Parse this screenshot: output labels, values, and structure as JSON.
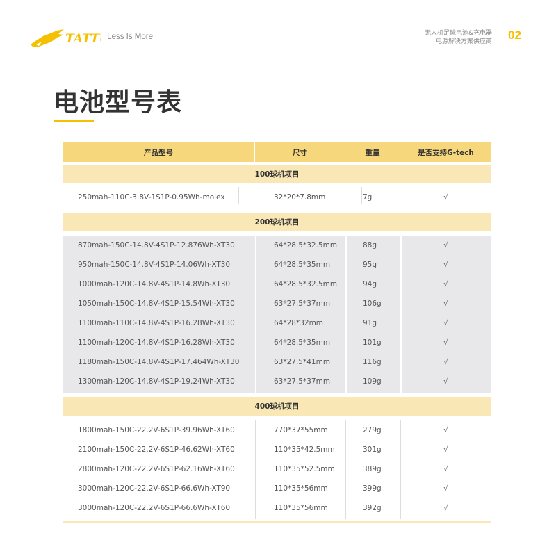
{
  "header": {
    "logo_text": "TATTU",
    "slogan": "| Less Is More",
    "tagline_line1": "无人机足球电池&充电器",
    "tagline_line2": "电源解决方案供应商",
    "page_number": "02",
    "accent_color": "#f5c000"
  },
  "page_title": "电池型号表",
  "table": {
    "columns": [
      "产品型号",
      "尺寸",
      "重量",
      "是否支持G-tech"
    ],
    "sections": [
      {
        "label": "100球机项目",
        "rows": [
          [
            "250mah-110C-3.8V-1S1P-0.95Wh-molex",
            "32*20*7.8mm",
            "7g",
            "√"
          ]
        ]
      },
      {
        "label": "200球机项目",
        "rows": [
          [
            "870mah-150C-14.8V-4S1P-12.876Wh-XT30",
            "64*28.5*32.5mm",
            "88g",
            "√"
          ],
          [
            "950mah-150C-14.8V-4S1P-14.06Wh-XT30",
            "64*28.5*35mm",
            "95g",
            "√"
          ],
          [
            "1000mah-120C-14.8V-4S1P-14.8Wh-XT30",
            "64*28.5*32.5mm",
            "94g",
            "√"
          ],
          [
            "1050mah-150C-14.8V-4S1P-15.54Wh-XT30",
            "63*27.5*37mm",
            "106g",
            "√"
          ],
          [
            "1100mah-110C-14.8V-4S1P-16.28Wh-XT30",
            "64*28*32mm",
            "91g",
            "√"
          ],
          [
            "1100mah-120C-14.8V-4S1P-16.28Wh-XT30",
            "64*28.5*35mm",
            "101g",
            "√"
          ],
          [
            "1180mah-150C-14.8V-4S1P-17.464Wh-XT30",
            "63*27.5*41mm",
            "116g",
            "√"
          ],
          [
            "1300mah-120C-14.8V-4S1P-19.24Wh-XT30",
            "63*27.5*37mm",
            "109g",
            "√"
          ]
        ]
      },
      {
        "label": "400球机项目",
        "rows": [
          [
            "1800mah-150C-22.2V-6S1P-39.96Wh-XT60",
            "770*37*55mm",
            "279g",
            "√"
          ],
          [
            "2100mah-150C-22.2V-6S1P-46.62Wh-XT60",
            "110*35*42.5mm",
            "301g",
            "√"
          ],
          [
            "2800mah-120C-22.2V-6S1P-62.16Wh-XT60",
            "110*35*52.5mm",
            "389g",
            "√"
          ],
          [
            "3000mah-120C-22.2V-6S1P-66.6Wh-XT90",
            "110*35*56mm",
            "399g",
            "√"
          ],
          [
            "3000mah-120C-22.2V-6S1P-66.6Wh-XT60",
            "110*35*56mm",
            "392g",
            "√"
          ]
        ]
      }
    ]
  }
}
